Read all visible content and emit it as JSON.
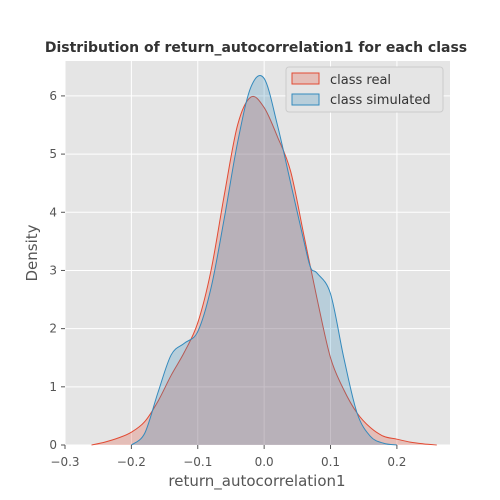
{
  "chart_data": {
    "type": "area",
    "title": "Distribution of return_autocorrelation1 for each class",
    "xlabel": "return_autocorrelation1",
    "ylabel": "Density",
    "xlim": [
      -0.3,
      0.28
    ],
    "ylim": [
      0,
      6.6
    ],
    "xticks": [
      -0.3,
      -0.2,
      -0.1,
      0.0,
      0.1,
      0.2
    ],
    "xtick_labels": [
      "−0.3",
      "−0.2",
      "−0.1",
      "0.0",
      "0.1",
      "0.2"
    ],
    "yticks": [
      0,
      1,
      2,
      3,
      4,
      5,
      6
    ],
    "ytick_labels": [
      "0",
      "1",
      "2",
      "3",
      "4",
      "5",
      "6"
    ],
    "grid": true,
    "legend_position": "top-right",
    "series": [
      {
        "name": "class real",
        "color": "#E24A33",
        "x": [
          -0.26,
          -0.24,
          -0.22,
          -0.2,
          -0.18,
          -0.16,
          -0.14,
          -0.12,
          -0.1,
          -0.08,
          -0.06,
          -0.04,
          -0.02,
          0.0,
          0.02,
          0.04,
          0.06,
          0.08,
          0.1,
          0.12,
          0.14,
          0.16,
          0.18,
          0.2,
          0.22,
          0.24,
          0.26
        ],
        "y": [
          0.0,
          0.05,
          0.12,
          0.22,
          0.4,
          0.75,
          1.2,
          1.6,
          2.1,
          3.0,
          4.3,
          5.5,
          5.98,
          5.8,
          5.3,
          4.7,
          3.6,
          2.5,
          1.5,
          0.95,
          0.55,
          0.3,
          0.15,
          0.1,
          0.05,
          0.02,
          0.0
        ]
      },
      {
        "name": "class simulated",
        "color": "#348ABD",
        "x": [
          -0.2,
          -0.18,
          -0.16,
          -0.14,
          -0.12,
          -0.1,
          -0.08,
          -0.06,
          -0.04,
          -0.02,
          0.0,
          0.02,
          0.04,
          0.06,
          0.07,
          0.08,
          0.1,
          0.12,
          0.14,
          0.16,
          0.18,
          0.2
        ],
        "y": [
          0.0,
          0.2,
          0.9,
          1.55,
          1.75,
          1.95,
          2.7,
          3.9,
          5.2,
          6.15,
          6.3,
          5.5,
          4.5,
          3.5,
          3.05,
          2.95,
          2.6,
          1.5,
          0.55,
          0.15,
          0.03,
          0.0
        ]
      }
    ]
  }
}
